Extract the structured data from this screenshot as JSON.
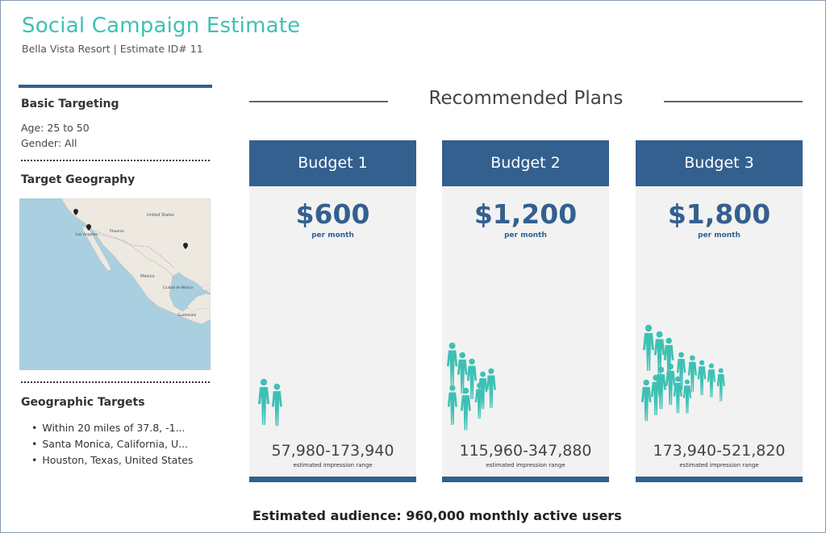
{
  "header": {
    "title": "Social Campaign Estimate",
    "subtitle": "Bella Vista Resort | Estimate ID# 11"
  },
  "sidebar": {
    "basic_targeting": {
      "heading": "Basic Targeting",
      "age": "Age: 25 to 50",
      "gender": "Gender: All"
    },
    "geography": {
      "heading": "Target Geography",
      "map_labels": [
        "United States",
        "Los Angeles",
        "Phoenix",
        "México",
        "Ciudad de México",
        "Guatemala"
      ]
    },
    "geo_targets": {
      "heading": "Geographic Targets",
      "items": [
        "Within 20 miles of 37.8, -1...",
        "Santa Monica, California, U...",
        "Houston, Texas, United States"
      ]
    }
  },
  "main": {
    "section_title": "Recommended Plans",
    "plans": [
      {
        "name": "Budget 1",
        "price": "$600",
        "per": "per month",
        "range": "57,980-173,940",
        "range_label": "estimated impression range",
        "people_count": 2
      },
      {
        "name": "Budget 2",
        "price": "$1,200",
        "per": "per month",
        "range": "115,960-347,880",
        "range_label": "estimated impression range",
        "people_count": 8
      },
      {
        "name": "Budget 3",
        "price": "$1,800",
        "per": "per month",
        "range": "173,940-521,820",
        "range_label": "estimated impression range",
        "people_count": 14
      }
    ],
    "audience": "Estimated audience: 960,000 monthly active users"
  },
  "colors": {
    "accent_teal": "#3ec1b4",
    "header_blue": "#33608f",
    "card_bg": "#f2f2f2",
    "map_water": "#a9cfe0",
    "map_land": "#ede9e1"
  }
}
